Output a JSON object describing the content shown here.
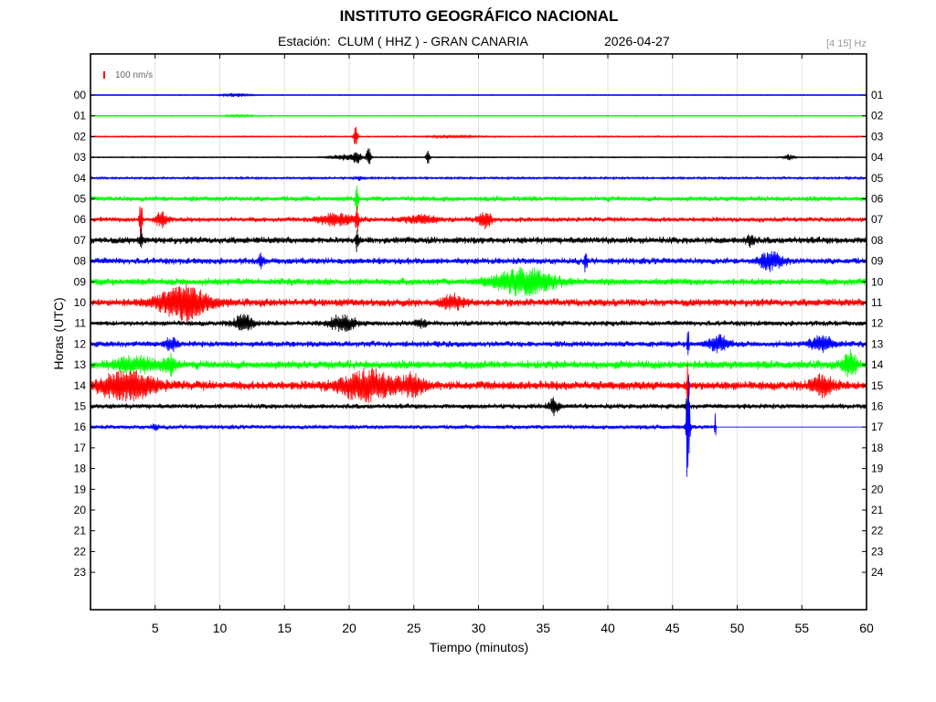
{
  "header": {
    "title": "INSTITUTO GEOGRÁFICO NACIONAL",
    "station_line": "Estación:  CLUM ( HHZ ) - GRAN CANARIA",
    "date": "2026-04-27",
    "filter": "[4 15] Hz"
  },
  "chart_data": {
    "type": "line",
    "subtype": "helicorder-seismogram",
    "xlabel": "Tiempo (minutos)",
    "ylabel": "Horas (UTC)",
    "xlim": [
      0,
      60
    ],
    "x_ticks": [
      5,
      10,
      15,
      20,
      25,
      30,
      35,
      40,
      45,
      50,
      55,
      60
    ],
    "y_ticks_left": [
      "00",
      "01",
      "02",
      "03",
      "04",
      "05",
      "06",
      "07",
      "08",
      "09",
      "10",
      "11",
      "12",
      "13",
      "14",
      "15",
      "16",
      "17",
      "18",
      "19",
      "20",
      "21",
      "22",
      "23"
    ],
    "y_ticks_right": [
      "01",
      "02",
      "03",
      "04",
      "05",
      "06",
      "07",
      "08",
      "09",
      "10",
      "11",
      "12",
      "13",
      "14",
      "15",
      "16",
      "17",
      "18",
      "19",
      "20",
      "21",
      "22",
      "23",
      "24"
    ],
    "scale_bar": {
      "label": "100 nm/s",
      "color": "#ff0000"
    },
    "grid": "vertical",
    "colors": [
      "#0000ff",
      "#00ff00",
      "#ff0000",
      "#000000"
    ],
    "data_end_minute": 48.4,
    "traces": [
      {
        "hour": "00",
        "noise": 0.4,
        "events": [
          {
            "t": 11.2,
            "a": 2,
            "w": 1.0
          }
        ]
      },
      {
        "hour": "01",
        "noise": 0.5,
        "events": [
          {
            "t": 11.5,
            "a": 1.2,
            "w": 1.0
          }
        ]
      },
      {
        "hour": "02",
        "noise": 0.6,
        "events": [
          {
            "t": 20.5,
            "a": 18,
            "w": 0.15
          },
          {
            "t": 28,
            "a": 1,
            "w": 2.0
          }
        ]
      },
      {
        "hour": "03",
        "noise": 0.5,
        "events": [
          {
            "t": 19.6,
            "a": 3,
            "w": 1.0
          },
          {
            "t": 20.6,
            "a": 8,
            "w": 0.3
          },
          {
            "t": 21.5,
            "a": 10,
            "w": 0.2
          },
          {
            "t": 26.1,
            "a": 8,
            "w": 0.15
          },
          {
            "t": 54,
            "a": 3,
            "w": 0.4
          }
        ]
      },
      {
        "hour": "04",
        "noise": 1.0,
        "events": [
          {
            "t": 20.8,
            "a": 2,
            "w": 0.3
          }
        ]
      },
      {
        "hour": "05",
        "noise": 2.5,
        "events": [
          {
            "t": 20.6,
            "a": 20,
            "w": 0.1
          }
        ]
      },
      {
        "hour": "06",
        "noise": 2.3,
        "events": [
          {
            "t": 3.9,
            "a": 22,
            "w": 0.12
          },
          {
            "t": 5.5,
            "a": 8,
            "w": 0.5
          },
          {
            "t": 19,
            "a": 6,
            "w": 1.5
          },
          {
            "t": 20.6,
            "a": 14,
            "w": 0.12
          },
          {
            "t": 25.5,
            "a": 4,
            "w": 1.2
          },
          {
            "t": 30.5,
            "a": 9,
            "w": 0.5
          }
        ]
      },
      {
        "hour": "07",
        "noise": 3.2,
        "events": [
          {
            "t": 3.9,
            "a": 12,
            "w": 0.1
          },
          {
            "t": 20.6,
            "a": 12,
            "w": 0.12
          },
          {
            "t": 51,
            "a": 6,
            "w": 0.3
          }
        ]
      },
      {
        "hour": "08",
        "noise": 3.0,
        "events": [
          {
            "t": 13.2,
            "a": 10,
            "w": 0.15
          },
          {
            "t": 38.3,
            "a": 14,
            "w": 0.12
          },
          {
            "t": 52.6,
            "a": 9,
            "w": 0.9
          }
        ]
      },
      {
        "hour": "09",
        "noise": 3.3,
        "events": [
          {
            "t": 33.5,
            "a": 14,
            "w": 2.3
          }
        ]
      },
      {
        "hour": "10",
        "noise": 3.6,
        "events": [
          {
            "t": 7.2,
            "a": 18,
            "w": 1.9
          },
          {
            "t": 28,
            "a": 7,
            "w": 0.9
          }
        ]
      },
      {
        "hour": "11",
        "noise": 2.5,
        "events": [
          {
            "t": 11.8,
            "a": 10,
            "w": 0.7
          },
          {
            "t": 19.5,
            "a": 8,
            "w": 1.0
          },
          {
            "t": 25.5,
            "a": 4,
            "w": 0.5
          }
        ]
      },
      {
        "hour": "12",
        "noise": 2.8,
        "events": [
          {
            "t": 6.2,
            "a": 6,
            "w": 0.5
          },
          {
            "t": 46.2,
            "a": 18,
            "w": 0.08
          },
          {
            "t": 48.6,
            "a": 8,
            "w": 0.8
          },
          {
            "t": 56.6,
            "a": 8,
            "w": 0.9
          }
        ]
      },
      {
        "hour": "13",
        "noise": 4.0,
        "events": [
          {
            "t": 3.5,
            "a": 8,
            "w": 1.5
          },
          {
            "t": 6.1,
            "a": 10,
            "w": 0.5
          },
          {
            "t": 58.7,
            "a": 14,
            "w": 0.5
          }
        ]
      },
      {
        "hour": "14",
        "noise": 4.2,
        "events": [
          {
            "t": 2.8,
            "a": 14,
            "w": 2.2
          },
          {
            "t": 21.5,
            "a": 15,
            "w": 2.2
          },
          {
            "t": 25,
            "a": 10,
            "w": 0.8
          },
          {
            "t": 46.2,
            "a": 25,
            "w": 0.1
          },
          {
            "t": 56.5,
            "a": 10,
            "w": 0.9
          }
        ]
      },
      {
        "hour": "15",
        "noise": 2.4,
        "events": [
          {
            "t": 35.8,
            "a": 8,
            "w": 0.4
          },
          {
            "t": 46.1,
            "a": 12,
            "w": 0.1
          }
        ]
      },
      {
        "hour": "16",
        "noise": 2.0,
        "events": [
          {
            "t": 5.0,
            "a": 4,
            "w": 0.2
          },
          {
            "t": 46.2,
            "a": 90,
            "w": 0.12
          },
          {
            "t": 48.3,
            "a": 16,
            "w": 0.05
          }
        ]
      }
    ]
  }
}
